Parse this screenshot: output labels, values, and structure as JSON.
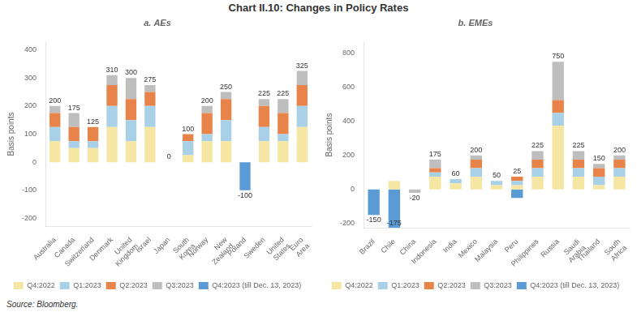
{
  "title": "Chart II.10: Changes in Policy Rates",
  "source": "Source: Bloomberg.",
  "chart_data": [
    {
      "type": "bar",
      "title": "a. AEs",
      "ylabel": "Basis points",
      "categories": [
        "Australia",
        "Canada",
        "Switzerland",
        "Denmark",
        "United\nKingdom",
        "Israel",
        "Japan",
        "South\nKorea",
        "Norway",
        "New\nZealand",
        "Poland",
        "Sweden",
        "United\nStates",
        "Euro\nArea"
      ],
      "series": [
        {
          "name": "Q4:2022",
          "color": "#F5E6A3",
          "values": [
            75,
            50,
            50,
            125,
            75,
            125,
            0,
            25,
            75,
            75,
            0,
            75,
            75,
            125
          ]
        },
        {
          "name": "Q1:2023",
          "color": "#A8D1E7",
          "values": [
            50,
            25,
            25,
            75,
            75,
            75,
            0,
            50,
            25,
            75,
            0,
            50,
            25,
            75
          ]
        },
        {
          "name": "Q2:2023",
          "color": "#E8834A",
          "values": [
            50,
            50,
            50,
            75,
            75,
            50,
            0,
            25,
            75,
            75,
            0,
            75,
            75,
            75
          ]
        },
        {
          "name": "Q3:2023",
          "color": "#BEBEBE",
          "values": [
            25,
            50,
            0,
            35,
            75,
            25,
            0,
            0,
            25,
            25,
            0,
            25,
            50,
            50
          ]
        },
        {
          "name": "Q4:2023 (till Dec. 13, 2023)",
          "color": "#5B9BD5",
          "values": [
            0,
            0,
            0,
            0,
            0,
            0,
            0,
            0,
            0,
            0,
            -100,
            0,
            0,
            0
          ]
        }
      ],
      "totals": [
        200,
        175,
        125,
        310,
        300,
        275,
        0,
        100,
        200,
        250,
        -100,
        225,
        225,
        325
      ],
      "ylim": [
        -230,
        430
      ],
      "yticks": [
        -200,
        -100,
        0,
        100,
        200,
        300,
        400
      ],
      "stacked": true,
      "grid": false,
      "legend": "bottom"
    },
    {
      "type": "bar",
      "title": "b. EMEs",
      "ylabel": "Basis points",
      "categories": [
        "Brazil",
        "Chile",
        "China",
        "Indonesia",
        "India",
        "Mexico",
        "Malaysia",
        "Peru",
        "Philippines",
        "Russia",
        "Saudi\nArabia",
        "Thailand",
        "South\nAfrica"
      ],
      "series": [
        {
          "name": "Q4:2022",
          "color": "#F5E6A3",
          "values": [
            0,
            50,
            0,
            75,
            35,
            75,
            25,
            25,
            75,
            375,
            75,
            25,
            75
          ]
        },
        {
          "name": "Q1:2023",
          "color": "#A8D1E7",
          "values": [
            0,
            0,
            0,
            25,
            25,
            50,
            25,
            25,
            50,
            75,
            50,
            50,
            50
          ]
        },
        {
          "name": "Q2:2023",
          "color": "#E8834A",
          "values": [
            0,
            0,
            0,
            25,
            0,
            50,
            0,
            25,
            50,
            75,
            50,
            50,
            50
          ]
        },
        {
          "name": "Q3:2023",
          "color": "#BEBEBE",
          "values": [
            0,
            0,
            -20,
            50,
            0,
            25,
            0,
            0,
            50,
            225,
            50,
            25,
            25
          ]
        },
        {
          "name": "Q4:2023 (till Dec. 13, 2023)",
          "color": "#5B9BD5",
          "values": [
            -150,
            -225,
            0,
            0,
            0,
            0,
            0,
            -50,
            0,
            0,
            0,
            0,
            0
          ]
        }
      ],
      "totals": [
        -150,
        -175,
        -20,
        175,
        60,
        200,
        50,
        25,
        225,
        750,
        225,
        150,
        200
      ],
      "ylim": [
        -230,
        870
      ],
      "yticks": [
        -200,
        0,
        200,
        400,
        600,
        800
      ],
      "stacked": true,
      "grid": false,
      "legend": "bottom"
    }
  ]
}
